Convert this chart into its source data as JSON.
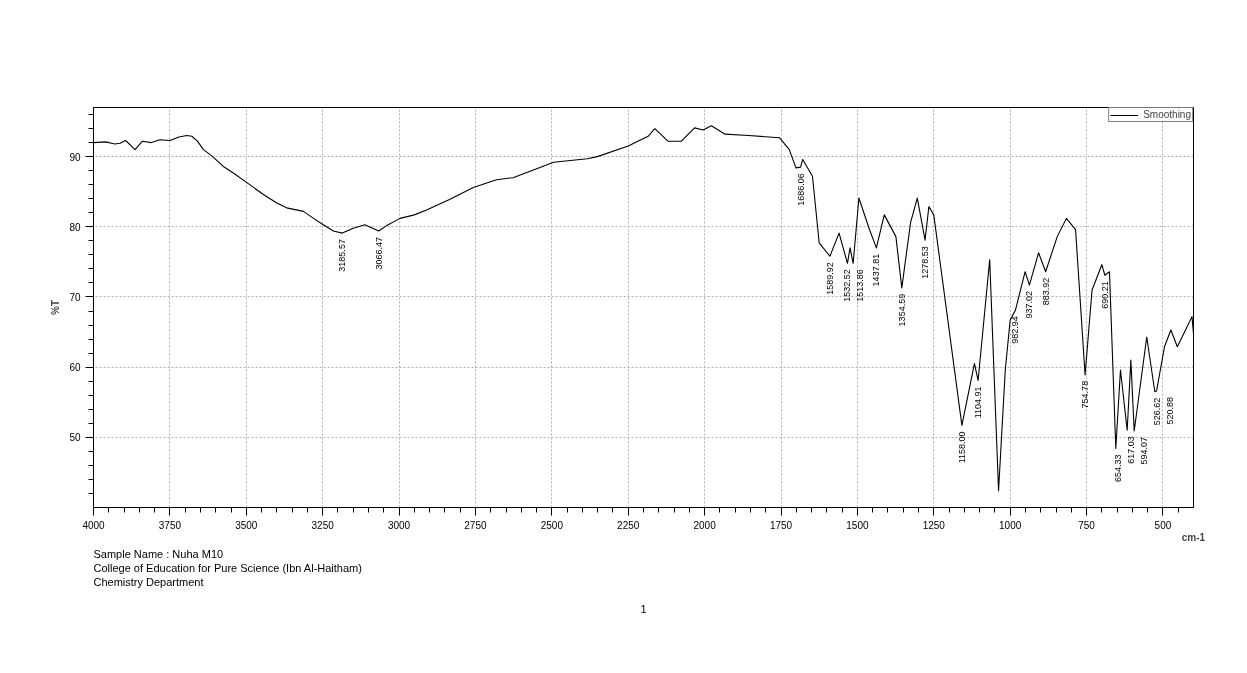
{
  "chart_data": {
    "type": "line",
    "xlabel": "cm-1",
    "ylabel": "%T",
    "xlim": [
      4000,
      400
    ],
    "ylim": [
      40,
      97
    ],
    "xticks": [
      4000,
      3750,
      3500,
      3250,
      3000,
      2750,
      2500,
      2250,
      2000,
      1750,
      1500,
      1250,
      1000,
      750,
      500,
      {
        "value": 3950,
        "label": null
      },
      {
        "value": 3900,
        "label": null
      },
      {
        "value": 3850,
        "label": null
      },
      {
        "value": 3800,
        "label": null
      },
      {
        "value": 3700,
        "label": null
      },
      {
        "value": 3650,
        "label": null
      },
      {
        "value": 3600,
        "label": null
      },
      {
        "value": 3550,
        "label": null
      },
      {
        "value": 3450,
        "label": null
      },
      {
        "value": 3400,
        "label": null
      },
      {
        "value": 3350,
        "label": null
      },
      {
        "value": 3300,
        "label": null
      },
      {
        "value": 3200,
        "label": null
      },
      {
        "value": 3150,
        "label": null
      },
      {
        "value": 3100,
        "label": null
      },
      {
        "value": 3050,
        "label": null
      },
      {
        "value": 2950,
        "label": null
      },
      {
        "value": 2900,
        "label": null
      },
      {
        "value": 2850,
        "label": null
      },
      {
        "value": 2800,
        "label": null
      },
      {
        "value": 2700,
        "label": null
      },
      {
        "value": 2650,
        "label": null
      },
      {
        "value": 2600,
        "label": null
      },
      {
        "value": 2550,
        "label": null
      },
      {
        "value": 2450,
        "label": null
      },
      {
        "value": 2400,
        "label": null
      },
      {
        "value": 2350,
        "label": null
      },
      {
        "value": 2300,
        "label": null
      },
      {
        "value": 2200,
        "label": null
      },
      {
        "value": 2150,
        "label": null
      },
      {
        "value": 2100,
        "label": null
      },
      {
        "value": 2050,
        "label": null
      },
      {
        "value": 1950,
        "label": null
      },
      {
        "value": 1900,
        "label": null
      },
      {
        "value": 1850,
        "label": null
      },
      {
        "value": 1800,
        "label": null
      },
      {
        "value": 1700,
        "label": null
      },
      {
        "value": 1650,
        "label": null
      },
      {
        "value": 1600,
        "label": null
      },
      {
        "value": 1550,
        "label": null
      },
      {
        "value": 1450,
        "label": null
      },
      {
        "value": 1400,
        "label": null
      },
      {
        "value": 1350,
        "label": null
      },
      {
        "value": 1300,
        "label": null
      },
      {
        "value": 1200,
        "label": null
      },
      {
        "value": 1150,
        "label": null
      },
      {
        "value": 1100,
        "label": null
      },
      {
        "value": 1050,
        "label": null
      },
      {
        "value": 950,
        "label": null
      },
      {
        "value": 900,
        "label": null
      },
      {
        "value": 850,
        "label": null
      },
      {
        "value": 800,
        "label": null
      },
      {
        "value": 700,
        "label": null
      },
      {
        "value": 650,
        "label": null
      },
      {
        "value": 600,
        "label": null
      },
      {
        "value": 550,
        "label": null
      },
      {
        "value": 450,
        "label": null
      }
    ],
    "yticks": [
      50,
      60,
      70,
      80,
      90,
      {
        "value": 42,
        "label": null
      },
      {
        "value": 44,
        "label": null
      },
      {
        "value": 46,
        "label": null
      },
      {
        "value": 48,
        "label": null
      },
      {
        "value": 52,
        "label": null
      },
      {
        "value": 54,
        "label": null
      },
      {
        "value": 56,
        "label": null
      },
      {
        "value": 58,
        "label": null
      },
      {
        "value": 62,
        "label": null
      },
      {
        "value": 64,
        "label": null
      },
      {
        "value": 66,
        "label": null
      },
      {
        "value": 68,
        "label": null
      },
      {
        "value": 72,
        "label": null
      },
      {
        "value": 74,
        "label": null
      },
      {
        "value": 76,
        "label": null
      },
      {
        "value": 78,
        "label": null
      },
      {
        "value": 82,
        "label": null
      },
      {
        "value": 84,
        "label": null
      },
      {
        "value": 86,
        "label": null
      },
      {
        "value": 88,
        "label": null
      },
      {
        "value": 92,
        "label": null
      },
      {
        "value": 94,
        "label": null
      },
      {
        "value": 96,
        "label": null
      }
    ],
    "grid": true,
    "legend": "top right",
    "series": [
      {
        "name": "Smoothing",
        "color": "#000000",
        "x": [
          4000,
          3960,
          3930,
          3913,
          3895,
          3864,
          3840,
          3810,
          3783,
          3750,
          3720,
          3695,
          3678,
          3660,
          3640,
          3610,
          3575,
          3540,
          3498,
          3444,
          3400,
          3368,
          3313,
          3280,
          3248,
          3215,
          3185.57,
          3150,
          3112,
          3066.47,
          3040,
          2997,
          2950,
          2910,
          2835,
          2757,
          2681,
          2627,
          2494,
          2384,
          2351,
          2250,
          2185,
          2163,
          2120,
          2076,
          2033,
          2005,
          1978,
          1933,
          1855,
          1755,
          1723,
          1701,
          1686.06,
          1679,
          1647,
          1625,
          1589.92,
          1560,
          1532.52,
          1524,
          1513.86,
          1495,
          1462,
          1437.81,
          1412,
          1374,
          1354.59,
          1326,
          1304,
          1278.53,
          1266,
          1250,
          1158,
          1117,
          1104.91,
          1067,
          1038,
          1016,
          1000,
          982.94,
          951,
          937.02,
          907,
          883.92,
          846,
          816,
          786,
          754.78,
          732,
          700,
          690.21,
          675,
          654.33,
          639,
          617.03,
          605,
          594.07,
          553,
          526.62,
          520.88,
          495,
          474,
          453,
          426,
          405,
          400
        ],
        "values": [
          92.0,
          92.1,
          91.8,
          91.9,
          92.3,
          91.0,
          92.2,
          92.0,
          92.4,
          92.3,
          92.8,
          93.0,
          92.9,
          92.2,
          91.0,
          90.0,
          88.6,
          87.6,
          86.3,
          84.6,
          83.4,
          82.7,
          82.2,
          81.2,
          80.3,
          79.4,
          79.1,
          79.8,
          80.3,
          79.4,
          80.2,
          81.2,
          81.7,
          82.4,
          83.9,
          85.6,
          86.7,
          87.0,
          89.2,
          89.7,
          90.0,
          91.5,
          92.9,
          94.0,
          92.2,
          92.2,
          94.1,
          93.8,
          94.4,
          93.2,
          93.0,
          92.7,
          91.0,
          88.4,
          88.5,
          89.6,
          87.2,
          77.7,
          75.8,
          79.1,
          74.8,
          77.0,
          74.8,
          84.1,
          79.8,
          77.0,
          81.7,
          78.6,
          71.3,
          80.6,
          84.1,
          78.1,
          82.9,
          81.7,
          51.7,
          60.5,
          58.1,
          75.3,
          42.4,
          59.6,
          66.7,
          68.1,
          73.6,
          71.7,
          76.3,
          73.6,
          78.6,
          81.2,
          79.6,
          58.9,
          71.0,
          74.6,
          73.1,
          73.6,
          48.4,
          59.6,
          51.0,
          61.0,
          50.9,
          64.3,
          56.5,
          56.6,
          62.9,
          65.3,
          62.9,
          65.3,
          67.2,
          64.8
        ]
      }
    ],
    "annotations": [
      {
        "text": "3185.57",
        "x": 3185.57,
        "y": 79.1
      },
      {
        "text": "3066.47",
        "x": 3066.47,
        "y": 79.4
      },
      {
        "text": "1686.06",
        "x": 1686.06,
        "y": 88.5
      },
      {
        "text": "1589.92",
        "x": 1589.92,
        "y": 75.8
      },
      {
        "text": "1532.52",
        "x": 1532.52,
        "y": 74.8
      },
      {
        "text": "1513.86",
        "x": 1513.86,
        "y": 74.8
      },
      {
        "text": "1437.81",
        "x": 1437.81,
        "y": 77.0
      },
      {
        "text": "1354.59",
        "x": 1354.59,
        "y": 71.3
      },
      {
        "text": "1278.53",
        "x": 1278.53,
        "y": 78.1
      },
      {
        "text": "1158.00",
        "x": 1158.0,
        "y": 51.7
      },
      {
        "text": "1104.91",
        "x": 1104.91,
        "y": 58.1
      },
      {
        "text": "982.94",
        "x": 982.94,
        "y": 68.1
      },
      {
        "text": "937.02",
        "x": 937.02,
        "y": 71.7
      },
      {
        "text": "883.92",
        "x": 883.92,
        "y": 73.6
      },
      {
        "text": "754.78",
        "x": 754.78,
        "y": 58.9
      },
      {
        "text": "690.21",
        "x": 690.21,
        "y": 73.1
      },
      {
        "text": "654.33",
        "x": 654.33,
        "y": 48.4
      },
      {
        "text": "617.03",
        "x": 617.03,
        "y": 51.0
      },
      {
        "text": "594.07",
        "x": 594.07,
        "y": 50.9
      },
      {
        "text": "526.62",
        "x": 526.62,
        "y": 56.5
      },
      {
        "text": "520.88",
        "x": 520.88,
        "y": 56.6
      },
      "Sample Name : Nuha   M10",
      "College of Education for Pure Science (Ibn Al-Haitham)",
      "Chemistry Department",
      "1"
    ]
  }
}
